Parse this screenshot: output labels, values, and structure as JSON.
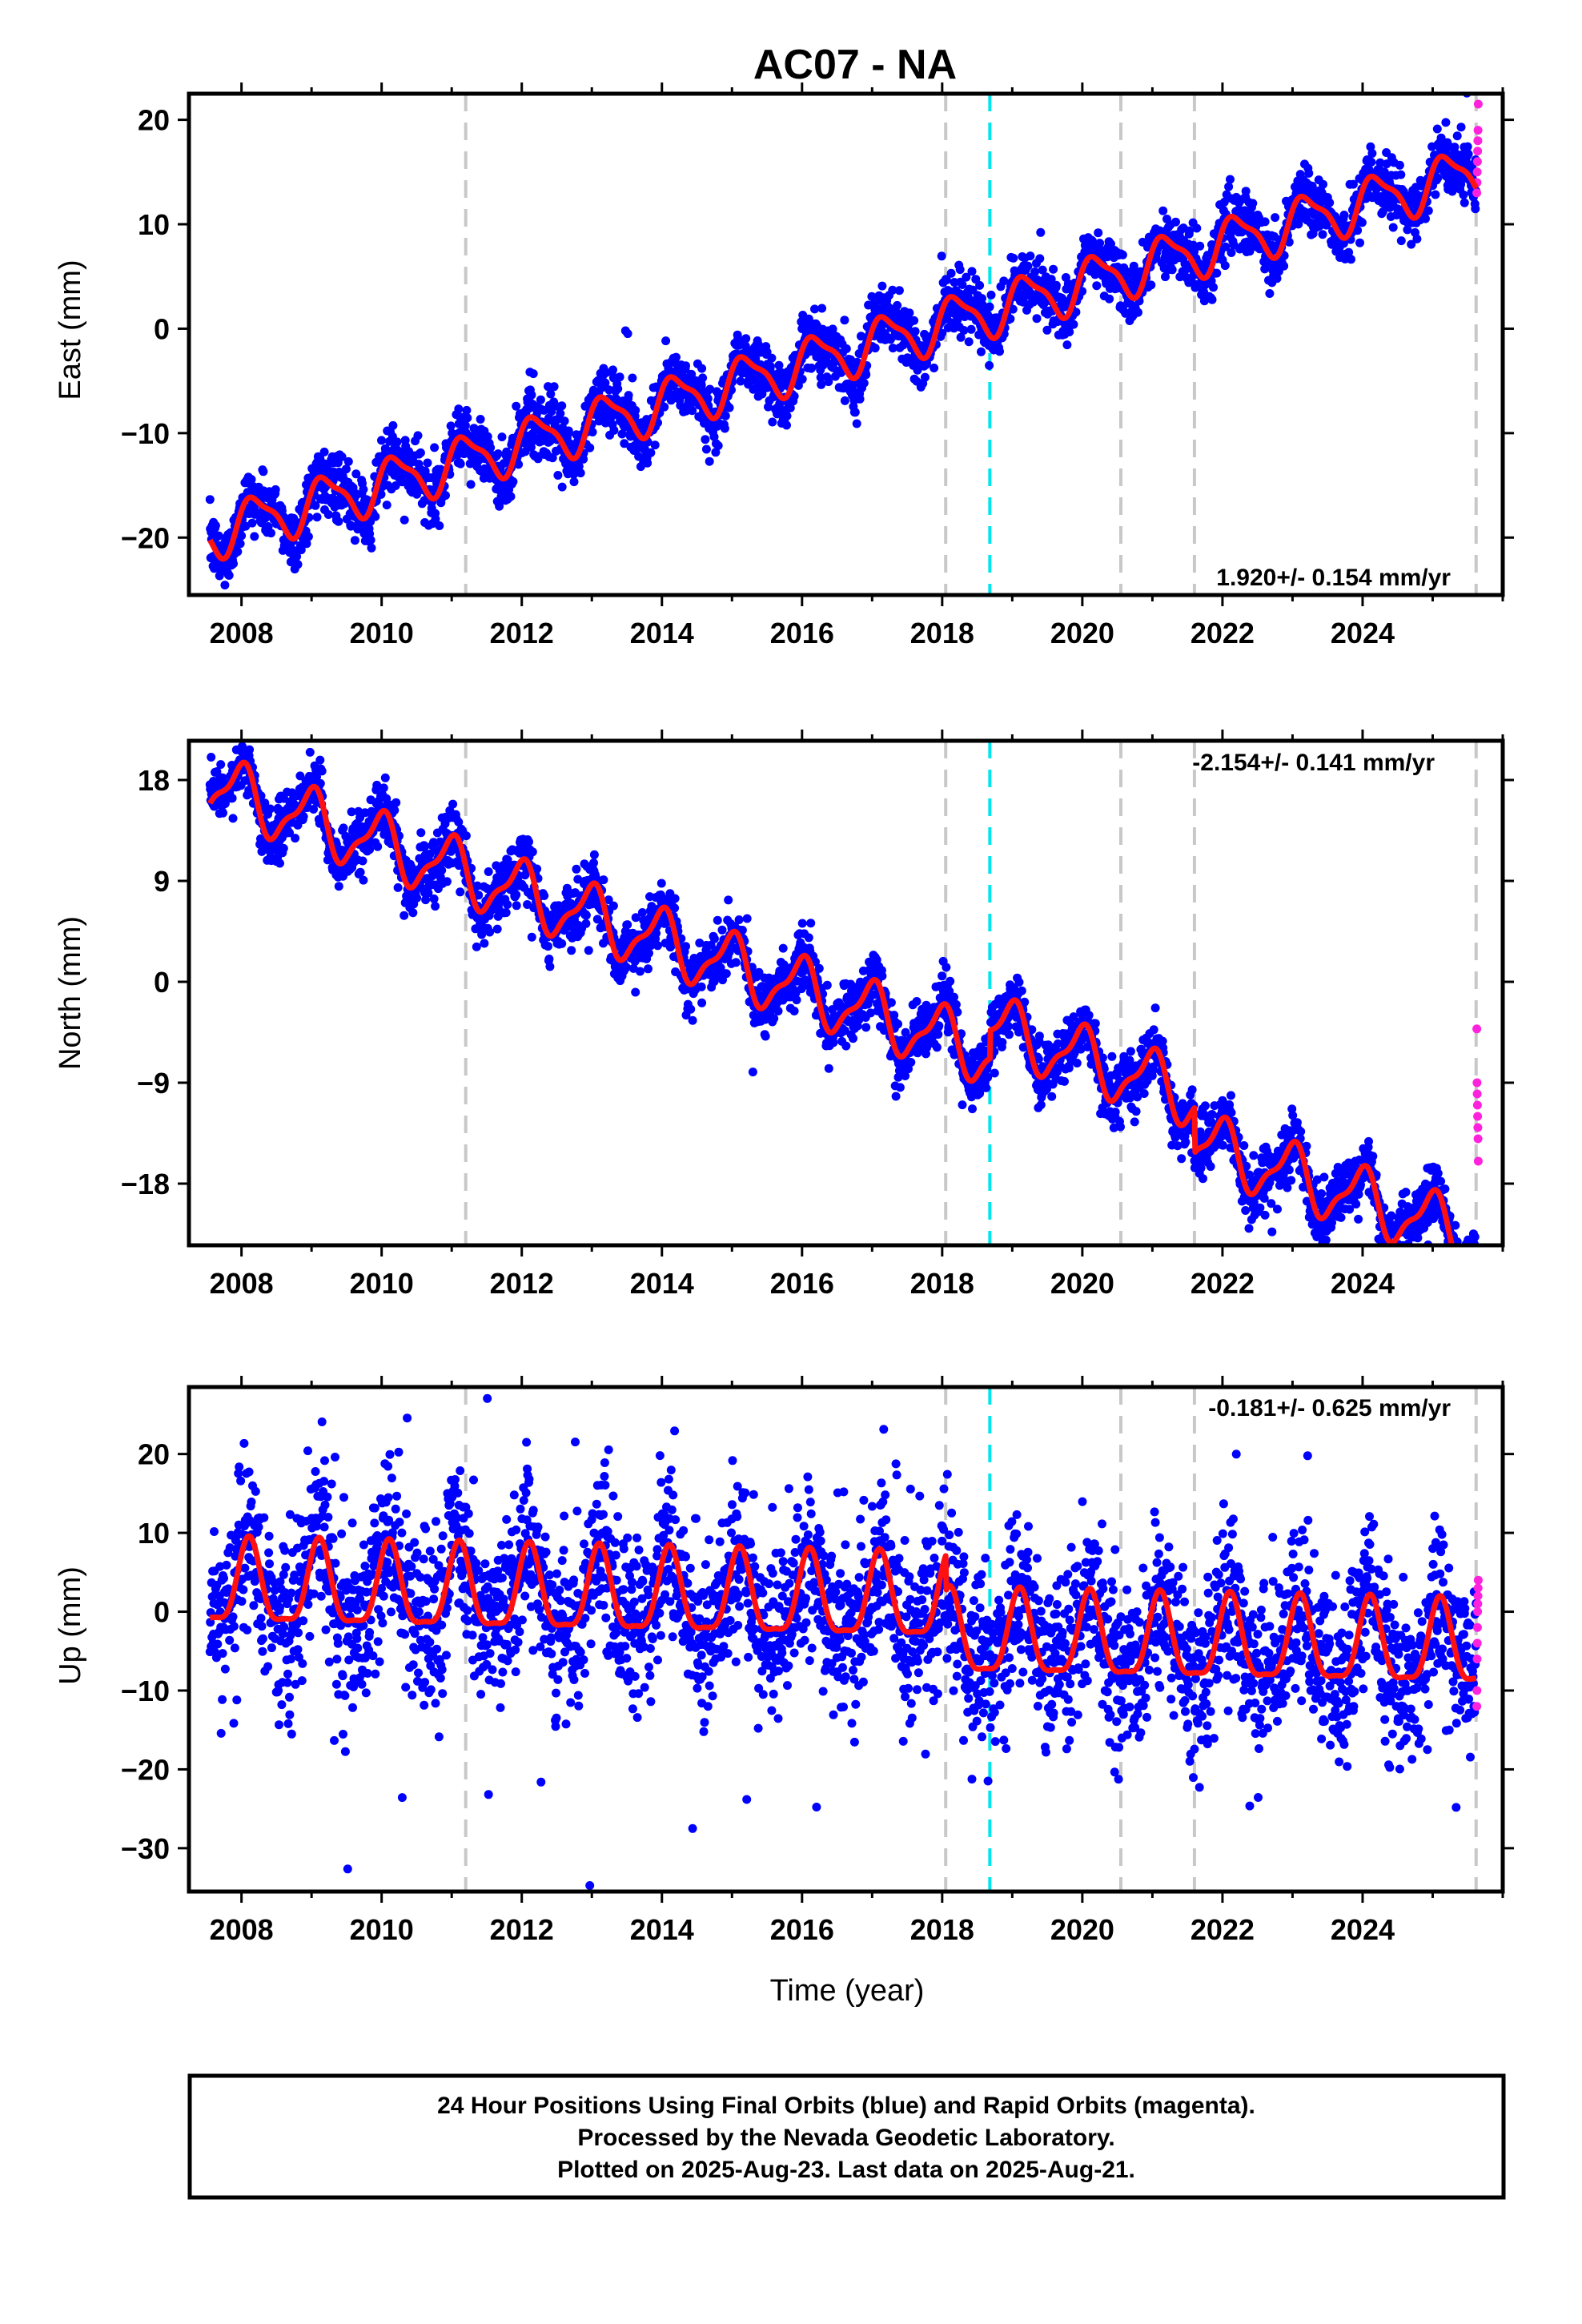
{
  "chart_data": [
    {
      "type": "scatter",
      "id": "east",
      "title": "AC07 - NA",
      "ylabel": "East (mm)",
      "xlabel": "",
      "xlim": [
        2007.25,
        2026.0
      ],
      "ylim": [
        -25.5,
        22.5
      ],
      "yticks": [
        -20,
        -10,
        0,
        10,
        20
      ],
      "xticks": [
        2008,
        2010,
        2012,
        2014,
        2016,
        2018,
        2020,
        2022,
        2024
      ],
      "rate_text": "1.920+/- 0.154 mm/yr",
      "rate_position": "bottom-right",
      "model": {
        "start": 2007.55,
        "end": 2025.62,
        "y0": -19.6,
        "rate": 1.92,
        "amp_annual": 2.3,
        "phase_annual": 0.3,
        "amp_semi": 0.7,
        "phase_semi": 1.1,
        "offsets": []
      },
      "scatter": {
        "noise": 1.4,
        "outlier_rate": 0.004
      },
      "rapid": {
        "start": 2025.63,
        "end": 2025.65,
        "values": [
          13.0,
          14.0,
          15.0,
          16.0,
          17.0,
          18.0,
          19.0,
          21.5
        ]
      },
      "grid": false
    },
    {
      "type": "scatter",
      "id": "north",
      "title": "",
      "ylabel": "North (mm)",
      "xlabel": "",
      "xlim": [
        2007.25,
        2026.0
      ],
      "ylim": [
        -23.5,
        21.5
      ],
      "yticks": [
        -18,
        -9,
        0,
        9,
        18
      ],
      "xticks": [
        2008,
        2010,
        2012,
        2014,
        2016,
        2018,
        2020,
        2022,
        2024
      ],
      "rate_text": "-2.154+/- 0.141 mm/yr",
      "rate_position": "top-right",
      "model": {
        "start": 2007.55,
        "end": 2025.62,
        "y0": 17.5,
        "rate": -2.154,
        "amp_annual": 2.6,
        "phase_annual": 1.7,
        "amp_semi": 0.9,
        "phase_semi": 0.4,
        "offsets": [
          [
            2018.68,
            2.5
          ],
          [
            2021.6,
            -4.0
          ]
        ]
      },
      "scatter": {
        "noise": 1.3,
        "outlier_rate": 0.004
      },
      "rapid": {
        "start": 2025.63,
        "end": 2025.65,
        "values": [
          -4.2,
          -9.0,
          -10.0,
          -11.0,
          -12.0,
          -13.0,
          -14.0,
          -16.0
        ]
      },
      "grid": false
    },
    {
      "type": "scatter",
      "id": "up",
      "title": "",
      "ylabel": "Up (mm)",
      "xlabel": "Time (year)",
      "xlim": [
        2007.25,
        2026.0
      ],
      "ylim": [
        -35.5,
        28.5
      ],
      "yticks": [
        -30,
        -20,
        -10,
        0,
        10,
        20
      ],
      "xticks": [
        2008,
        2010,
        2012,
        2014,
        2016,
        2018,
        2020,
        2022,
        2024
      ],
      "rate_text": "-0.181+/- 0.625 mm/yr",
      "rate_position": "top-right",
      "model": {
        "start": 2007.55,
        "end": 2025.62,
        "y0": 3.0,
        "rate": -0.181,
        "amp_annual": 5.2,
        "phase_annual": 0.9,
        "amp_semi": 1.5,
        "phase_semi": 0.2,
        "offsets": [
          [
            2018.05,
            -4.5
          ]
        ]
      },
      "scatter": {
        "noise": 5.5,
        "outlier_rate": 0.01
      },
      "rapid": {
        "start": 2025.63,
        "end": 2025.65,
        "values": [
          -12.0,
          -10.0,
          -6.0,
          -4.0,
          -2.0,
          0.0,
          1.0,
          2.0,
          3.0,
          4.0
        ]
      },
      "grid": false
    }
  ],
  "vertical_lines": {
    "gray_dashed": [
      2011.2,
      2018.05,
      2020.55,
      2021.6,
      2025.62
    ],
    "cyan_dashed": [
      2018.68
    ]
  },
  "colors": {
    "final_orbits": "#0000ff",
    "rapid_orbits": "#ff22dd",
    "model": "#ff1111",
    "gray_line": "#c8c8c8",
    "cyan_line": "#00e5ee"
  },
  "footer": {
    "line1": "24 Hour Positions Using Final Orbits (blue) and Rapid Orbits (magenta).",
    "line2": "Processed by the Nevada Geodetic Laboratory.",
    "line3": "Plotted on 2025-Aug-23. Last data on 2025-Aug-21."
  }
}
